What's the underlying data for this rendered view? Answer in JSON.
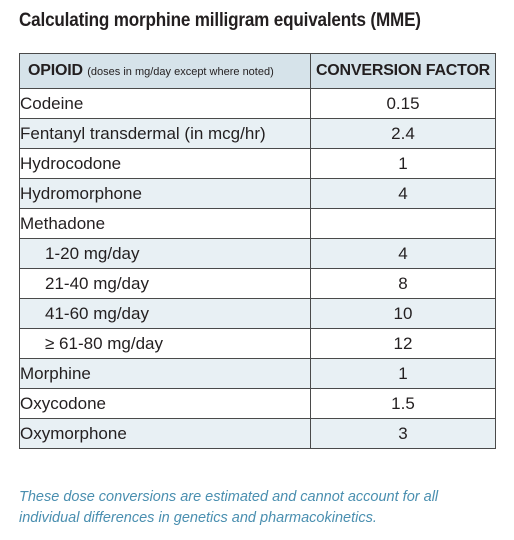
{
  "title": "Calculating morphine milligram equivalents (MME)",
  "table": {
    "header": {
      "opioid": "OPIOID",
      "opioid_note": "(doses in mg/day except where noted)",
      "factor": "CONVERSION FACTOR"
    },
    "rows": [
      {
        "name": "Codeine",
        "factor": "0.15",
        "indent": false
      },
      {
        "name": "Fentanyl transdermal (in mcg/hr)",
        "factor": "2.4",
        "indent": false
      },
      {
        "name": "Hydrocodone",
        "factor": "1",
        "indent": false
      },
      {
        "name": "Hydromorphone",
        "factor": "4",
        "indent": false
      },
      {
        "name": "Methadone",
        "factor": "",
        "indent": false
      },
      {
        "name": "1-20 mg/day",
        "factor": "4",
        "indent": true
      },
      {
        "name": "21-40 mg/day",
        "factor": "8",
        "indent": true
      },
      {
        "name": "41-60 mg/day",
        "factor": "10",
        "indent": true
      },
      {
        "name": "≥ 61-80 mg/day",
        "factor": "12",
        "indent": true
      },
      {
        "name": "Morphine",
        "factor": "1",
        "indent": false
      },
      {
        "name": "Oxycodone",
        "factor": "1.5",
        "indent": false
      },
      {
        "name": "Oxymorphone",
        "factor": "3",
        "indent": false
      }
    ]
  },
  "footnote": "These dose conversions are estimated and cannot account for all individual differences in genetics and pharmacokinetics.",
  "colors": {
    "header_bg": "#d6e3ea",
    "stripe_bg": "#e8f0f4",
    "footnote_text": "#4a8fb0",
    "border": "#4a4a4a"
  }
}
